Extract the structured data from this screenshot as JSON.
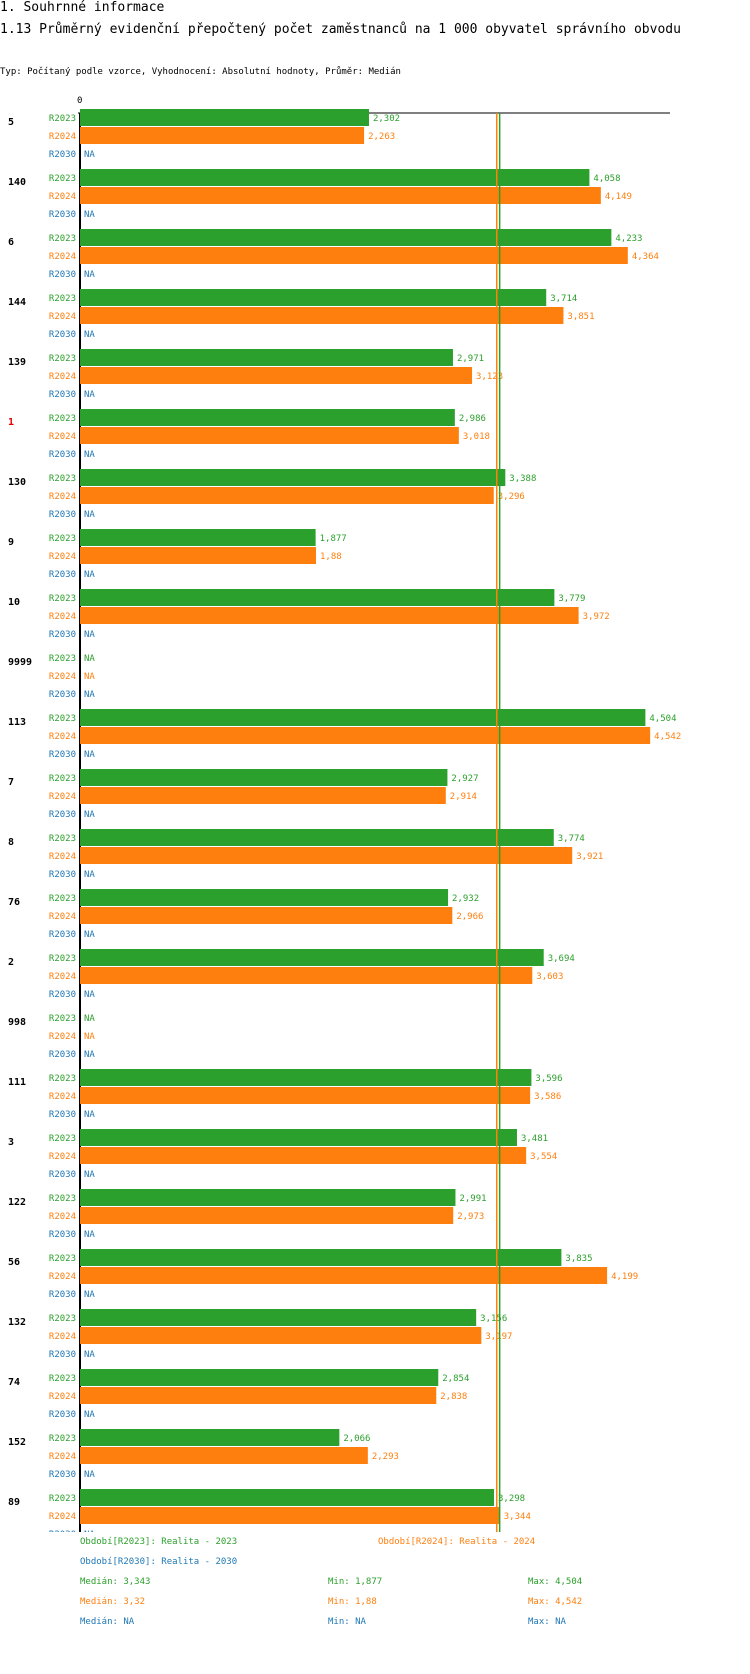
{
  "heading": {
    "section": "1. Souhrnné informace",
    "title": "1.13 Průměrný evidenční přepočtený počet zaměstnanců na 1 000 obyvatel správního obvodu",
    "subtitle": "Typ: Počítaný podle vzorce, Vyhodnocení: Absolutní hodnoty, Průměr: Medián"
  },
  "colors": {
    "R2023": "#2ca02c",
    "R2024": "#ff7f0e",
    "R2030": "#1f77b4",
    "highlight": "#e00000"
  },
  "chart_data": {
    "type": "bar",
    "orientation": "horizontal",
    "title": "1.13 Průměrný evidenční přepočtený počet zaměstnanců na 1 000 obyvatel správního obvodu",
    "xlim": [
      0,
      4.7
    ],
    "x_tick_label": "0",
    "highlight_category": "1",
    "categories": [
      "5",
      "140",
      "6",
      "144",
      "139",
      "1",
      "130",
      "9",
      "10",
      "9999",
      "113",
      "7",
      "8",
      "76",
      "2",
      "998",
      "111",
      "3",
      "122",
      "56",
      "132",
      "74",
      "152",
      "89"
    ],
    "series": [
      {
        "name": "R2023",
        "values": [
          2.302,
          4.058,
          4.233,
          3.714,
          2.971,
          2.986,
          3.388,
          1.877,
          3.779,
          null,
          4.504,
          2.927,
          3.774,
          2.932,
          3.694,
          null,
          3.596,
          3.481,
          2.991,
          3.835,
          3.156,
          2.854,
          2.066,
          3.298
        ],
        "labels": [
          "2,302",
          "4,058",
          "4,233",
          "3,714",
          "2,971",
          "2,986",
          "3,388",
          "1,877",
          "3,779",
          "NA",
          "4,504",
          "2,927",
          "3,774",
          "2,932",
          "3,694",
          "NA",
          "3,596",
          "3,481",
          "2,991",
          "3,835",
          "3,156",
          "2,854",
          "2,066",
          "3,298"
        ]
      },
      {
        "name": "R2024",
        "values": [
          2.263,
          4.149,
          4.364,
          3.851,
          3.123,
          3.018,
          3.296,
          1.88,
          3.972,
          null,
          4.542,
          2.914,
          3.921,
          2.966,
          3.603,
          null,
          3.586,
          3.554,
          2.973,
          4.199,
          3.197,
          2.838,
          2.293,
          3.344
        ],
        "labels": [
          "2,263",
          "4,149",
          "4,364",
          "3,851",
          "3,123",
          "3,018",
          "3,296",
          "1,88",
          "3,972",
          "NA",
          "4,542",
          "2,914",
          "3,921",
          "2,966",
          "3,603",
          "NA",
          "3,586",
          "3,554",
          "2,973",
          "4,199",
          "3,197",
          "2,838",
          "2,293",
          "3,344"
        ]
      },
      {
        "name": "R2030",
        "values": [
          null,
          null,
          null,
          null,
          null,
          null,
          null,
          null,
          null,
          null,
          null,
          null,
          null,
          null,
          null,
          null,
          null,
          null,
          null,
          null,
          null,
          null,
          null,
          null
        ],
        "labels": [
          "NA",
          "NA",
          "NA",
          "NA",
          "NA",
          "NA",
          "NA",
          "NA",
          "NA",
          "NA",
          "NA",
          "NA",
          "NA",
          "NA",
          "NA",
          "NA",
          "NA",
          "NA",
          "NA",
          "NA",
          "NA",
          "NA",
          "NA",
          "NA"
        ]
      }
    ],
    "reference_lines": [
      {
        "series": "R2023",
        "stat": "median",
        "value": 3.343
      },
      {
        "series": "R2024",
        "stat": "median",
        "value": 3.32
      }
    ]
  },
  "legend": {
    "R2023": "Období[R2023]: Realita - 2023",
    "R2024": "Období[R2024]: Realita - 2024",
    "R2030": "Období[R2030]: Realita - 2030",
    "stats": {
      "R2023": {
        "median": "Medián: 3,343",
        "min": "Min: 1,877",
        "max": "Max: 4,504"
      },
      "R2024": {
        "median": "Medián: 3,32",
        "min": "Min: 1,88",
        "max": "Max: 4,542"
      },
      "R2030": {
        "median": "Medián: NA",
        "min": "Min: NA",
        "max": "Max: NA"
      }
    }
  }
}
